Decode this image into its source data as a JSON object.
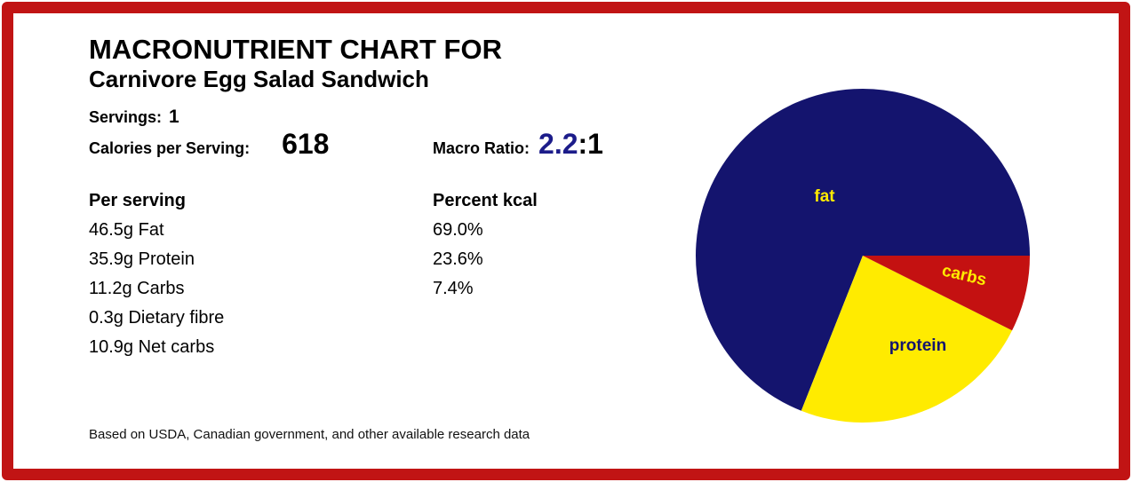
{
  "header": {
    "title": "MACRONUTRIENT CHART FOR",
    "subtitle": "Carnivore Egg Salad Sandwich"
  },
  "stats": {
    "servings_label": "Servings:",
    "servings_value": "1",
    "calories_label": "Calories per Serving:",
    "calories_value": "618",
    "ratio_label": "Macro Ratio:",
    "ratio_value": "2.2",
    "ratio_suffix": ":1"
  },
  "nutrition": {
    "amount_header": "Per serving",
    "percent_header": "Percent kcal",
    "rows": [
      {
        "amount": "46.5g Fat",
        "percent": "69.0%"
      },
      {
        "amount": "35.9g Protein",
        "percent": "23.6%"
      },
      {
        "amount": "11.2g Carbs",
        "percent": "7.4%"
      },
      {
        "amount": "0.3g Dietary fibre",
        "percent": ""
      },
      {
        "amount": "10.9g Net carbs",
        "percent": ""
      }
    ]
  },
  "footer": {
    "note": "Based on USDA, Canadian government, and other available research data"
  },
  "colors": {
    "frame_red": "#C11414",
    "navy": "#14146E",
    "ratio_blue": "#1C1C8A",
    "slice_red": "#C41111",
    "yellow": "#FFEB00",
    "text": "#000000"
  },
  "chart_data": {
    "type": "pie",
    "title": "",
    "categories": [
      "fat",
      "protein",
      "carbs"
    ],
    "values": [
      69.0,
      23.6,
      7.4
    ],
    "slice_colors": [
      "#14146E",
      "#FFEB00",
      "#C41111"
    ],
    "label_colors": [
      "#FFEB00",
      "#14146E",
      "#FFEB00"
    ],
    "start_angle_deg": 0,
    "direction": "counterclockwise",
    "legend": "none",
    "grid": false
  }
}
